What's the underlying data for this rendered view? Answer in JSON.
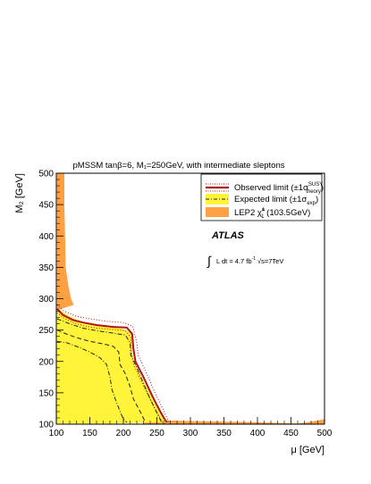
{
  "chart_data": {
    "type": "area",
    "title": "pMSSM tanβ=6, M₁=250GeV, with intermediate sleptons",
    "xlabel": "μ [GeV]",
    "ylabel": "M₂ [GeV]",
    "xlim": [
      100,
      500
    ],
    "ylim": [
      100,
      500
    ],
    "xticks": [
      "100",
      "150",
      "200",
      "250",
      "300",
      "350",
      "400",
      "450",
      "500"
    ],
    "yticks": [
      "100",
      "150",
      "200",
      "250",
      "300",
      "350",
      "400",
      "450",
      "500"
    ],
    "grid": false,
    "legend_position": "top-right",
    "legend": [
      {
        "name": "observed",
        "label": "Observed limit (±1σ",
        "sup": "SUSY",
        "sub": "theory",
        "tail": ")"
      },
      {
        "name": "expected",
        "label": "Expected limit (±1σ",
        "sub": "exp",
        "tail": ")"
      },
      {
        "name": "lep2",
        "label": "LEP2 χ̃",
        "sup": "±",
        "sub": "1",
        "tail": " (103.5GeV)"
      }
    ],
    "annotations": {
      "experiment": "ATLAS",
      "lumi_prefix": "L dt = 4.7 fb",
      "lumi_sup": "-1",
      "lumi_suffix": "√s=7TeV"
    },
    "colors": {
      "lep2": "#FFA042",
      "expected_band": "#FFF43A",
      "observed_line": "#B11414",
      "expected_line": "#222222"
    },
    "series": [
      {
        "name": "LEP2 excluded (upper-left band)",
        "kind": "region",
        "points": [
          [
            101,
            500
          ],
          [
            112,
            500
          ],
          [
            112,
            450
          ],
          [
            113,
            400
          ],
          [
            114,
            350
          ],
          [
            118,
            320
          ],
          [
            122,
            300
          ],
          [
            126,
            290
          ],
          [
            105,
            283
          ],
          [
            101,
            280
          ]
        ]
      },
      {
        "name": "LEP2 excluded (lower-left region)",
        "kind": "region",
        "points": [
          [
            101,
            225
          ],
          [
            115,
            224
          ],
          [
            127,
            210
          ],
          [
            140,
            190
          ],
          [
            150,
            160
          ],
          [
            160,
            135
          ],
          [
            170,
            115
          ],
          [
            165,
            108
          ],
          [
            130,
            103
          ],
          [
            101,
            102
          ]
        ]
      },
      {
        "name": "LEP2 excluded (bottom strip)",
        "kind": "region",
        "points": [
          [
            230,
            107
          ],
          [
            300,
            105
          ],
          [
            400,
            103
          ],
          [
            460,
            101
          ],
          [
            480,
            104
          ],
          [
            500,
            108
          ],
          [
            500,
            100
          ],
          [
            230,
            100
          ]
        ]
      },
      {
        "name": "Expected limit ±1σ band",
        "kind": "region",
        "points": [
          [
            101,
            285
          ],
          [
            120,
            272
          ],
          [
            140,
            262
          ],
          [
            160,
            257
          ],
          [
            185,
            254
          ],
          [
            200,
            252
          ],
          [
            213,
            245
          ],
          [
            213,
            220
          ],
          [
            215,
            200
          ],
          [
            230,
            170
          ],
          [
            245,
            138
          ],
          [
            258,
            112
          ],
          [
            265,
            103
          ],
          [
            180,
            101
          ],
          [
            101,
            101
          ],
          [
            101,
            225
          ],
          [
            118,
            224
          ],
          [
            140,
            214
          ],
          [
            160,
            200
          ],
          [
            172,
            170
          ],
          [
            182,
            130
          ],
          [
            185,
            110
          ],
          [
            170,
            110
          ],
          [
            150,
            120
          ],
          [
            140,
            130
          ],
          [
            128,
            150
          ],
          [
            115,
            175
          ],
          [
            101,
            178
          ]
        ]
      },
      {
        "name": "Observed limit",
        "kind": "line",
        "color": "#B11414",
        "points": [
          [
            101,
            284
          ],
          [
            110,
            274
          ],
          [
            125,
            266
          ],
          [
            140,
            262
          ],
          [
            160,
            258
          ],
          [
            185,
            255
          ],
          [
            205,
            254
          ],
          [
            213,
            244
          ],
          [
            215,
            220
          ],
          [
            218,
            200
          ],
          [
            230,
            175
          ],
          [
            243,
            145
          ],
          [
            255,
            120
          ],
          [
            262,
            107
          ],
          [
            265,
            103
          ]
        ]
      },
      {
        "name": "Observed limit +1σ theory",
        "kind": "line",
        "style": "dotted",
        "color": "#B11414",
        "points": [
          [
            101,
            290
          ],
          [
            112,
            280
          ],
          [
            130,
            272
          ],
          [
            150,
            268
          ],
          [
            175,
            264
          ],
          [
            200,
            262
          ],
          [
            214,
            256
          ],
          [
            220,
            230
          ],
          [
            222,
            210
          ],
          [
            235,
            180
          ],
          [
            248,
            148
          ],
          [
            260,
            122
          ],
          [
            268,
            103
          ]
        ]
      },
      {
        "name": "Observed limit -1σ theory",
        "kind": "line",
        "style": "dotted",
        "color": "#B11414",
        "points": [
          [
            101,
            278
          ],
          [
            110,
            270
          ],
          [
            125,
            262
          ],
          [
            140,
            257
          ],
          [
            160,
            253
          ],
          [
            185,
            251
          ],
          [
            203,
            249
          ],
          [
            211,
            238
          ],
          [
            212,
            215
          ],
          [
            215,
            196
          ],
          [
            226,
            170
          ],
          [
            240,
            140
          ],
          [
            252,
            115
          ],
          [
            258,
            104
          ]
        ]
      },
      {
        "name": "Expected limit",
        "kind": "line",
        "style": "dashed",
        "color": "#222222",
        "points": [
          [
            101,
            250
          ],
          [
            112,
            245
          ],
          [
            130,
            238
          ],
          [
            150,
            232
          ],
          [
            170,
            228
          ],
          [
            185,
            224
          ],
          [
            193,
            215
          ],
          [
            195,
            195
          ],
          [
            203,
            180
          ],
          [
            210,
            160
          ],
          [
            215,
            140
          ],
          [
            225,
            120
          ],
          [
            232,
            105
          ]
        ]
      },
      {
        "name": "Expected limit ±1σ (upper)",
        "kind": "line",
        "style": "dash-dot",
        "color": "#222222",
        "points": [
          [
            101,
            268
          ],
          [
            120,
            260
          ],
          [
            140,
            253
          ],
          [
            160,
            249
          ],
          [
            185,
            245
          ],
          [
            203,
            242
          ],
          [
            210,
            230
          ],
          [
            211,
            210
          ],
          [
            218,
            195
          ],
          [
            228,
            170
          ],
          [
            240,
            140
          ],
          [
            250,
            118
          ],
          [
            257,
            103
          ]
        ]
      },
      {
        "name": "Expected limit ±1σ (lower)",
        "kind": "line",
        "style": "dash-dot",
        "color": "#222222",
        "points": [
          [
            101,
            232
          ],
          [
            115,
            230
          ],
          [
            135,
            222
          ],
          [
            150,
            215
          ],
          [
            165,
            206
          ],
          [
            175,
            195
          ],
          [
            180,
            175
          ],
          [
            183,
            155
          ],
          [
            188,
            140
          ],
          [
            195,
            120
          ],
          [
            200,
            108
          ],
          [
            205,
            103
          ]
        ]
      }
    ]
  }
}
